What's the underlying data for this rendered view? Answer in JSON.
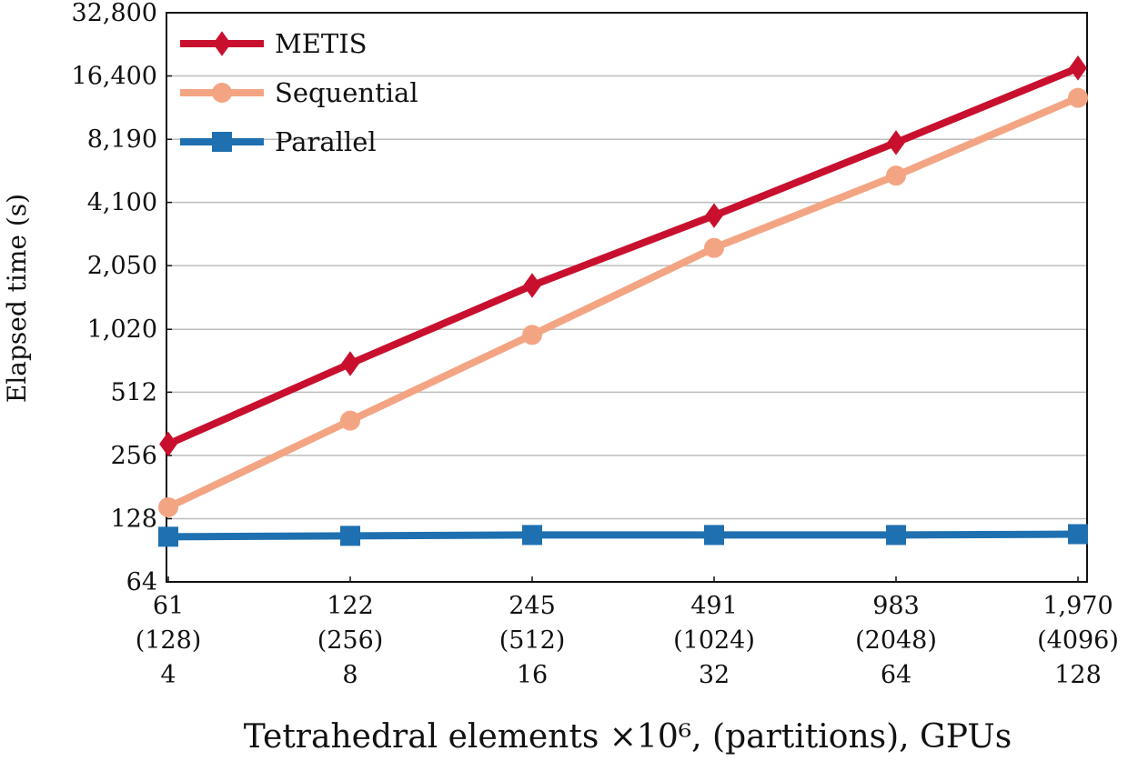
{
  "chart_data": {
    "type": "line",
    "title": "",
    "xlabel": "Tetrahedral elements ×10⁶, (partitions), GPUs",
    "ylabel": "Elapsed time (s)",
    "yscale": "log2",
    "ylim": [
      64,
      32800
    ],
    "grid": "horizontal",
    "legend": "top-left",
    "yticks": [
      "64",
      "128",
      "256",
      "512",
      "1,020",
      "2,050",
      "4,100",
      "8,190",
      "16,400",
      "32,800"
    ],
    "categories": [
      {
        "elements": "61",
        "partitions": "(128)",
        "gpus": "4"
      },
      {
        "elements": "122",
        "partitions": "(256)",
        "gpus": "8"
      },
      {
        "elements": "245",
        "partitions": "(512)",
        "gpus": "16"
      },
      {
        "elements": "491",
        "partitions": "(1024)",
        "gpus": "32"
      },
      {
        "elements": "983",
        "partitions": "(2048)",
        "gpus": "64"
      },
      {
        "elements": "1,970",
        "partitions": "(4096)",
        "gpus": "128"
      }
    ],
    "series": [
      {
        "name": "METIS",
        "color": "#c8102e",
        "marker": "diamond",
        "values": [
          290,
          700,
          1650,
          3550,
          7900,
          17900
        ]
      },
      {
        "name": "Sequential",
        "color": "#f3a583",
        "marker": "circle",
        "values": [
          145,
          375,
          960,
          2490,
          5500,
          12900
        ]
      },
      {
        "name": "Parallel",
        "color": "#1f70b0",
        "marker": "square",
        "values": [
          105,
          106,
          107,
          107,
          107,
          108
        ]
      }
    ]
  }
}
